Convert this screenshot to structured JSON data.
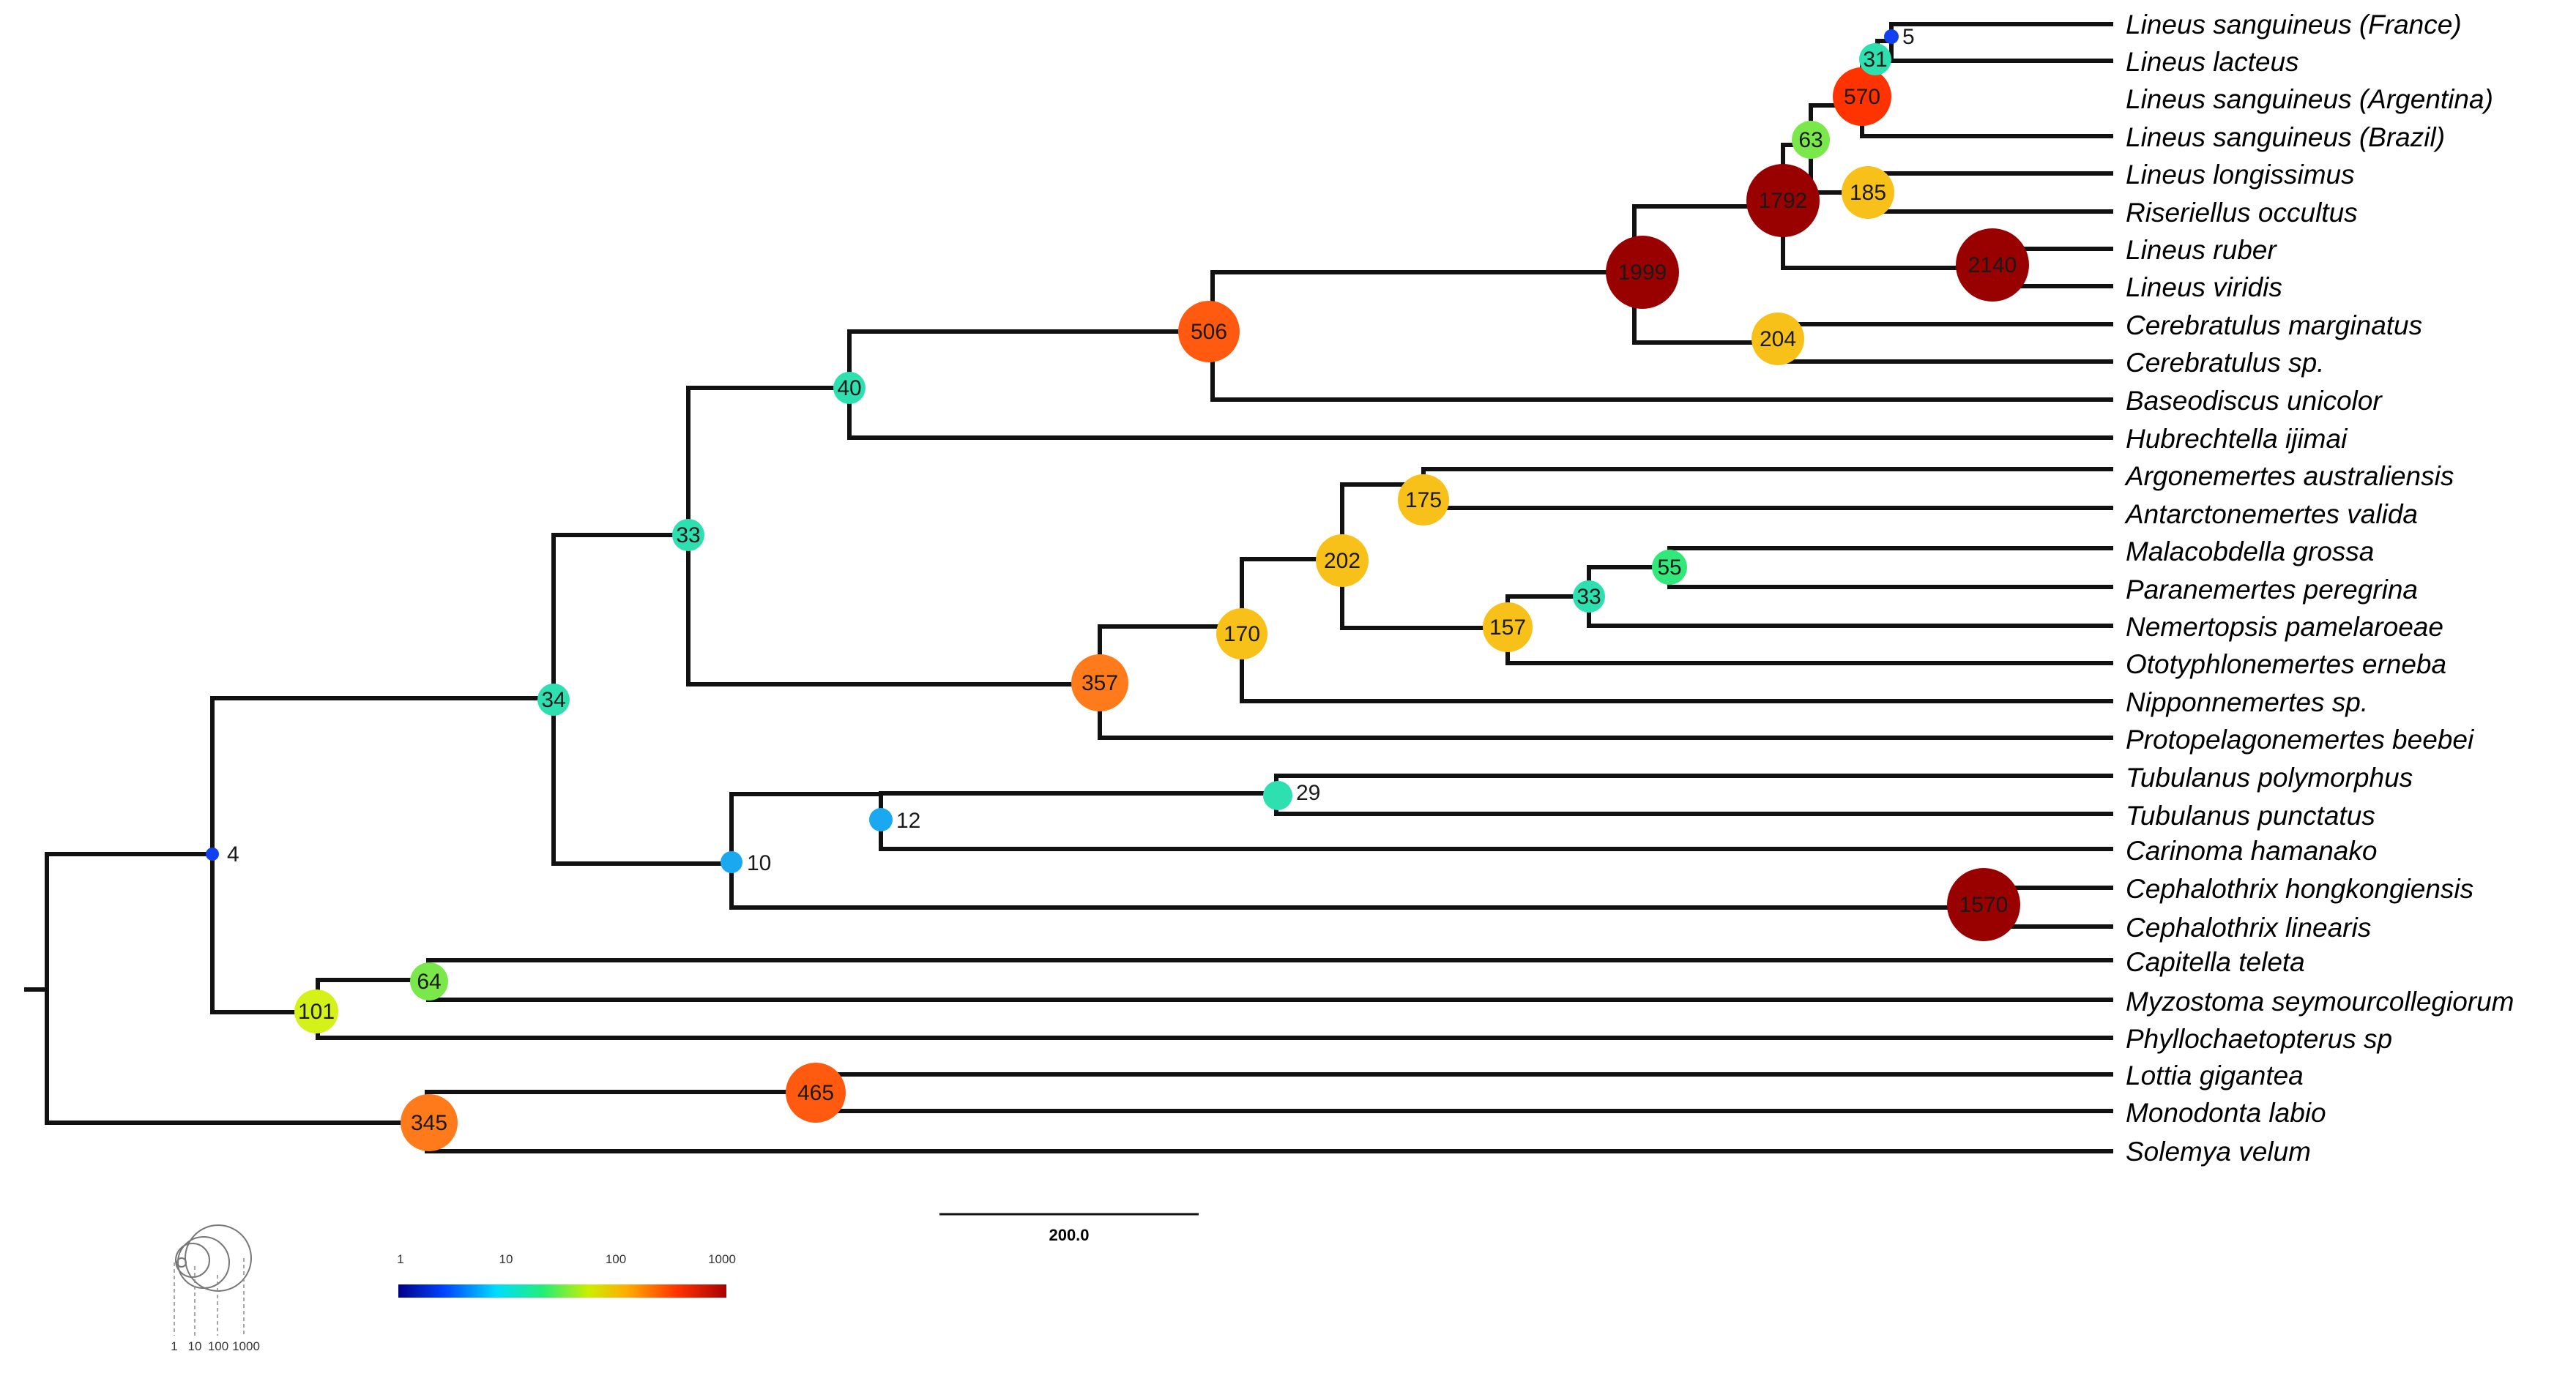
{
  "taxa": [
    "Lineus sanguineus (France)",
    "Lineus lacteus",
    "Lineus sanguineus (Argentina)",
    "Lineus sanguineus (Brazil)",
    "Lineus longissimus",
    "Riseriellus occultus",
    "Lineus ruber",
    "Lineus viridis",
    "Cerebratulus marginatus",
    "Cerebratulus sp.",
    "Baseodiscus unicolor",
    "Hubrechtella ijimai",
    "Argonemertes australiensis",
    "Antarctonemertes valida",
    "Malacobdella grossa",
    "Paranemertes peregrina",
    "Nemertopsis pamelaroeae",
    "Ototyphlonemertes erneba",
    "Nipponnemertes sp.",
    "Protopelagonemertes beebei",
    "Tubulanus polymorphus",
    "Tubulanus punctatus",
    "Carinoma hamanako",
    "Cephalothrix hongkongiensis",
    "Cephalothrix linearis",
    "Capitella teleta",
    "Myzostoma seymourcollegiorum",
    "Phyllochaetopterus sp",
    "Lottia gigantea",
    "Monodonta labio",
    "Solemya velum"
  ],
  "node_counts": {
    "n_root_in": "4",
    "n_34": "34",
    "n_33": "33",
    "n_40": "40",
    "n_506": "506",
    "n_1999": "1999",
    "n_1792": "1792",
    "n_63": "63",
    "n_570": "570",
    "n_31": "31",
    "n_5": "5",
    "n_185": "185",
    "n_2140": "2140",
    "n_204": "204",
    "n_357": "357",
    "n_170": "170",
    "n_202": "202",
    "n_175": "175",
    "n_157": "157",
    "n_33b": "33",
    "n_55": "55",
    "n_10": "10",
    "n_12": "12",
    "n_29": "29",
    "n_1570": "1570",
    "n_101": "101",
    "n_64": "64",
    "n_345": "345",
    "n_465": "465"
  },
  "node_colors": {
    "dark_red": "#990000",
    "red": "#ff3300",
    "red_orange": "#ff5a10",
    "orange": "#ff7a1a",
    "amber": "#f7c11a",
    "yellow_green": "#d4f21a",
    "light_green": "#7ae84a",
    "green": "#33e87a",
    "teal": "#2ee0b0",
    "sky": "#1aa8f0",
    "blue": "#1240f0"
  },
  "scale_bar": {
    "label": "200.0"
  },
  "color_legend": {
    "ticks": [
      "1",
      "10",
      "100",
      "1000"
    ],
    "gradient": [
      "#000088",
      "#0044ff",
      "#00ddff",
      "#22ee77",
      "#ccee00",
      "#ffaa00",
      "#ff3300",
      "#aa0000"
    ]
  },
  "size_legend": {
    "ticks": [
      "1",
      "10",
      "100",
      "1000"
    ]
  }
}
